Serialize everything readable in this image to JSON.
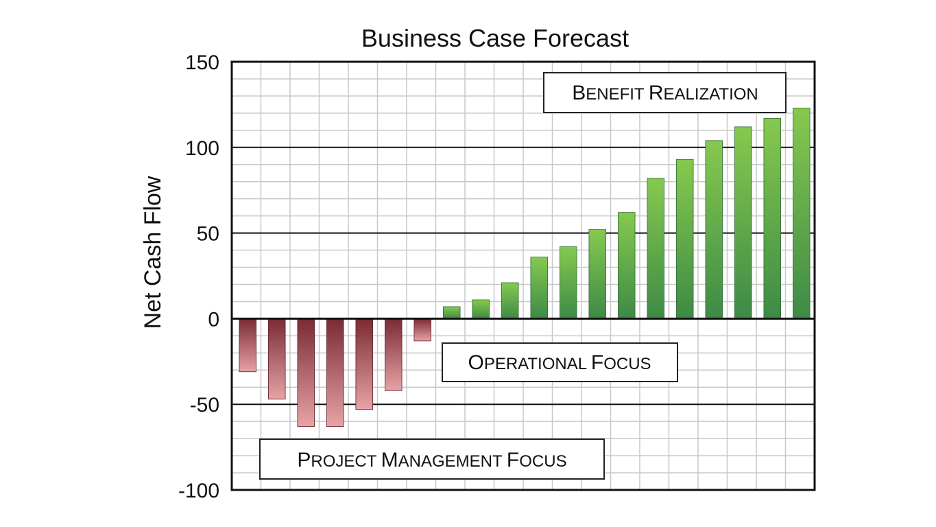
{
  "chart_data": {
    "type": "bar",
    "title": "Business Case Forecast",
    "ylabel": "Net Cash Flow",
    "xlabel": "",
    "ylim": [
      -100,
      150
    ],
    "yticks": [
      150,
      100,
      50,
      0,
      -50,
      -100
    ],
    "ytick_labels": [
      "150",
      "100",
      "50",
      "0",
      "-50",
      "-100"
    ],
    "grid": true,
    "values": [
      -31,
      -47,
      -63,
      -63,
      -53,
      -42,
      -13,
      7,
      11,
      21,
      36,
      42,
      52,
      62,
      82,
      93,
      104,
      112,
      117,
      123
    ],
    "colors": {
      "negative_top": "#7a2a33",
      "negative_bottom": "#e6a3a6",
      "positive_top": "#86c94f",
      "positive_bottom": "#3e8a46"
    },
    "annotations": [
      {
        "id": "benefit",
        "parts": [
          {
            "text": "B",
            "size": "big"
          },
          {
            "text": "ENEFIT ",
            "size": "small"
          },
          {
            "text": "R",
            "size": "big"
          },
          {
            "text": "EALIZATION",
            "size": "small"
          }
        ]
      },
      {
        "id": "operational",
        "parts": [
          {
            "text": "O",
            "size": "big"
          },
          {
            "text": "PERATIONAL ",
            "size": "small"
          },
          {
            "text": "F",
            "size": "big"
          },
          {
            "text": "OCUS",
            "size": "small"
          }
        ]
      },
      {
        "id": "project",
        "parts": [
          {
            "text": "P",
            "size": "big"
          },
          {
            "text": "ROJECT ",
            "size": "small"
          },
          {
            "text": "M",
            "size": "big"
          },
          {
            "text": "ANAGEMENT ",
            "size": "small"
          },
          {
            "text": "F",
            "size": "big"
          },
          {
            "text": "OCUS",
            "size": "small"
          }
        ]
      }
    ]
  }
}
